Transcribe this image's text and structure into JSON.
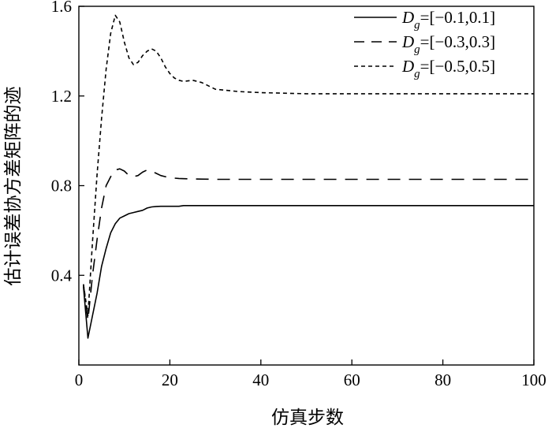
{
  "chart_data": {
    "type": "line",
    "xlabel": "仿真步数",
    "ylabel": "估计误差协方差矩阵的迹",
    "xlim": [
      0,
      100
    ],
    "ylim": [
      0.0,
      1.6
    ],
    "x_ticks": [
      "0",
      "20",
      "40",
      "60",
      "80",
      "100"
    ],
    "x_tick_values": [
      0,
      20,
      40,
      60,
      80,
      100
    ],
    "y_ticks": [
      "0.4",
      "0.8",
      "1.2",
      "1.6"
    ],
    "y_tick_values": [
      0.4,
      0.8,
      1.2,
      1.6
    ],
    "grid": false,
    "legend_position": "top-right",
    "series": [
      {
        "name_main": "D",
        "name_sub": "g",
        "name_rest": "=[−0.1,0.1]",
        "line_style": "solid",
        "x": [
          1,
          2,
          3,
          4,
          5,
          6,
          7,
          8,
          9,
          10,
          11,
          12,
          13,
          14,
          15,
          16,
          17,
          18,
          20,
          22,
          23,
          25,
          30,
          40,
          50,
          60,
          70,
          80,
          90,
          100
        ],
        "y": [
          0.35,
          0.12,
          0.22,
          0.32,
          0.44,
          0.52,
          0.59,
          0.63,
          0.655,
          0.665,
          0.675,
          0.68,
          0.685,
          0.69,
          0.7,
          0.705,
          0.707,
          0.708,
          0.708,
          0.708,
          0.711,
          0.711,
          0.711,
          0.711,
          0.711,
          0.711,
          0.711,
          0.711,
          0.711,
          0.711
        ]
      },
      {
        "name_main": "D",
        "name_sub": "g",
        "name_rest": "=[−0.3,0.3]",
        "line_style": "dashed",
        "x": [
          1,
          2,
          3,
          4,
          5,
          6,
          7,
          8,
          9,
          10,
          11,
          12,
          13,
          14,
          15,
          16,
          17,
          18,
          19,
          20,
          22,
          25,
          30,
          40,
          50,
          60,
          70,
          80,
          90,
          100
        ],
        "y": [
          0.36,
          0.2,
          0.4,
          0.56,
          0.7,
          0.8,
          0.84,
          0.87,
          0.875,
          0.865,
          0.845,
          0.84,
          0.845,
          0.86,
          0.87,
          0.865,
          0.855,
          0.845,
          0.84,
          0.835,
          0.832,
          0.83,
          0.828,
          0.828,
          0.828,
          0.828,
          0.828,
          0.828,
          0.828,
          0.828
        ]
      },
      {
        "name_main": "D",
        "name_sub": "g",
        "name_rest": "=[−0.5,0.5]",
        "line_style": "dotted",
        "x": [
          1,
          2,
          3,
          4,
          5,
          6,
          7,
          8,
          9,
          10,
          11,
          12,
          13,
          14,
          15,
          16,
          17,
          18,
          19,
          20,
          21,
          22,
          23,
          25,
          27,
          30,
          35,
          40,
          50,
          60,
          70,
          80,
          90,
          100
        ],
        "y": [
          0.36,
          0.22,
          0.55,
          0.85,
          1.1,
          1.32,
          1.48,
          1.56,
          1.53,
          1.44,
          1.37,
          1.34,
          1.35,
          1.38,
          1.4,
          1.41,
          1.4,
          1.37,
          1.33,
          1.3,
          1.28,
          1.27,
          1.265,
          1.27,
          1.26,
          1.23,
          1.22,
          1.215,
          1.21,
          1.21,
          1.21,
          1.21,
          1.21,
          1.21
        ]
      }
    ]
  }
}
